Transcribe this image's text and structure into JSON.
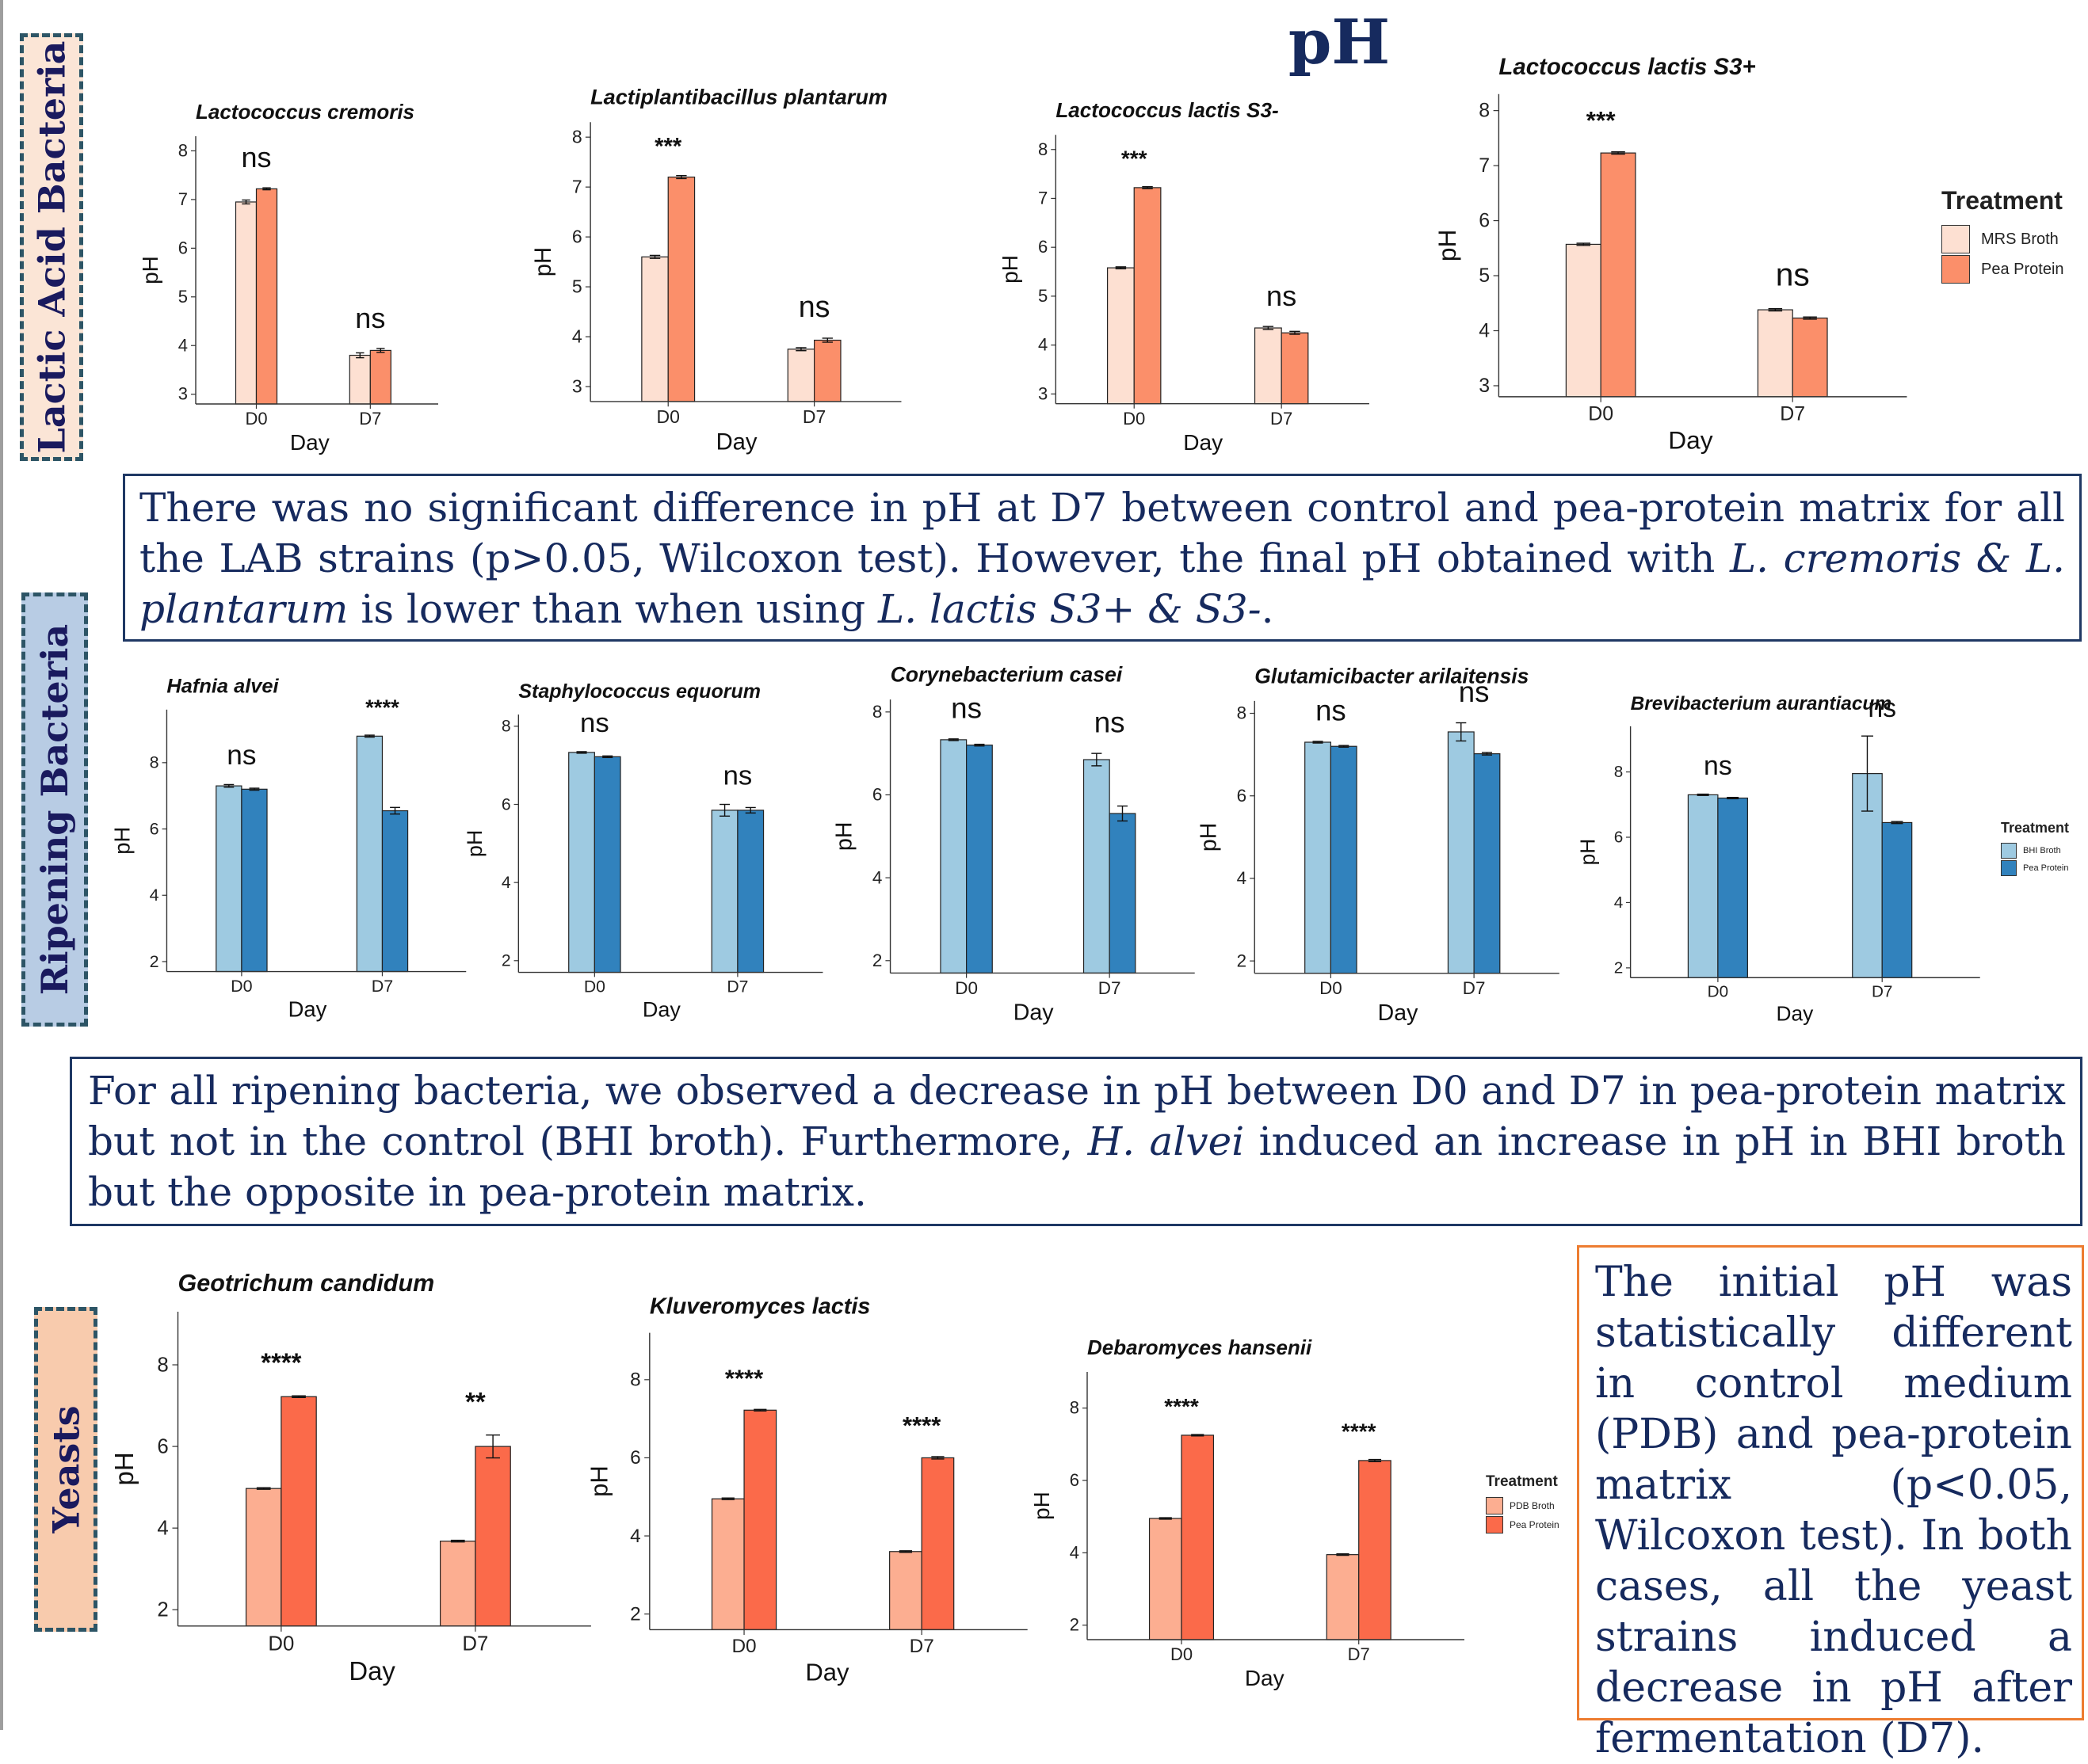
{
  "title": "pH",
  "sections": {
    "lab": "Lactic Acid Bacteria",
    "ripening": "Ripening Bacteria",
    "yeasts": "Yeasts"
  },
  "texts": {
    "lab": [
      "There was no significant difference in pH at D7 between control and pea-protein matrix for all the LAB strains (p>0.05, Wilcoxon test). However, the final pH obtained with ",
      "L. cremoris & L. plantarum",
      " is lower than when using ",
      "L. lactis S3+ & S3-",
      "."
    ],
    "ripening": [
      "For all ripening bacteria, we observed a decrease in pH between D0 and D7 in pea-protein matrix but not in the control (BHI broth). Furthermore, ",
      "H. alvei",
      " induced an increase in pH in BHI broth but the opposite in pea-protein matrix."
    ],
    "yeasts": "The initial pH was statistically different in control medium (PDB) and pea-protein matrix (p<0.05, Wilcoxon test). In both cases, all the yeast strains induced a decrease in pH after fermentation (D7)."
  },
  "legends": {
    "lab": {
      "title": "Treatment",
      "items": [
        "MRS Broth",
        "Pea Protein"
      ],
      "colors": [
        "#fde0d2",
        "#fb8f6a"
      ]
    },
    "ripening": {
      "title": "Treatment",
      "items": [
        "BHI Broth",
        "Pea Protein"
      ],
      "colors": [
        "#9ecae1",
        "#3182bd"
      ]
    },
    "yeasts": {
      "title": "Treatment",
      "items": [
        "PDB Broth",
        "Pea Protein"
      ],
      "colors": [
        "#fcae91",
        "#fb6a4a"
      ]
    }
  },
  "chart_data": [
    {
      "type": "bar",
      "title": "Lactococcus cremoris",
      "xlabel": "Day",
      "ylabel": "pH",
      "categories": [
        "D0",
        "D7"
      ],
      "series": [
        {
          "name": "MRS Broth",
          "values": [
            6.95,
            3.8
          ],
          "err": [
            0.04,
            0.05
          ]
        },
        {
          "name": "Pea Protein",
          "values": [
            7.22,
            3.9
          ],
          "err": [
            0.02,
            0.04
          ]
        }
      ],
      "ylim": [
        2.8,
        8.3
      ],
      "yticks": [
        3,
        4,
        5,
        6,
        7,
        8
      ],
      "sig": [
        "ns",
        "ns"
      ],
      "colors": [
        "#fde0d2",
        "#fb8f6a"
      ]
    },
    {
      "type": "bar",
      "title": "Lactiplantibacillus plantarum",
      "xlabel": "Day",
      "ylabel": "pH",
      "categories": [
        "D0",
        "D7"
      ],
      "series": [
        {
          "name": "MRS Broth",
          "values": [
            5.6,
            3.75
          ],
          "err": [
            0.03,
            0.03
          ]
        },
        {
          "name": "Pea Protein",
          "values": [
            7.2,
            3.93
          ],
          "err": [
            0.03,
            0.04
          ]
        }
      ],
      "ylim": [
        2.7,
        8.3
      ],
      "yticks": [
        3,
        4,
        5,
        6,
        7,
        8
      ],
      "sig": [
        "***",
        "ns"
      ],
      "colors": [
        "#fde0d2",
        "#fb8f6a"
      ]
    },
    {
      "type": "bar",
      "title": "Lactococcus lactis S3-",
      "xlabel": "Day",
      "ylabel": "pH",
      "categories": [
        "D0",
        "D7"
      ],
      "series": [
        {
          "name": "MRS Broth",
          "values": [
            5.58,
            4.35
          ],
          "err": [
            0.02,
            0.03
          ]
        },
        {
          "name": "Pea Protein",
          "values": [
            7.22,
            4.25
          ],
          "err": [
            0.02,
            0.03
          ]
        }
      ],
      "ylim": [
        2.8,
        8.3
      ],
      "yticks": [
        3,
        4,
        5,
        6,
        7,
        8
      ],
      "sig": [
        "***",
        "ns"
      ],
      "colors": [
        "#fde0d2",
        "#fb8f6a"
      ]
    },
    {
      "type": "bar",
      "title": "Lactococcus lactis S3+",
      "xlabel": "Day",
      "ylabel": "pH",
      "categories": [
        "D0",
        "D7"
      ],
      "series": [
        {
          "name": "MRS Broth",
          "values": [
            5.57,
            4.38
          ],
          "err": [
            0.02,
            0.02
          ]
        },
        {
          "name": "Pea Protein",
          "values": [
            7.23,
            4.23
          ],
          "err": [
            0.02,
            0.02
          ]
        }
      ],
      "ylim": [
        2.8,
        8.3
      ],
      "yticks": [
        3,
        4,
        5,
        6,
        7,
        8
      ],
      "sig": [
        "***",
        "ns"
      ],
      "colors": [
        "#fde0d2",
        "#fb8f6a"
      ]
    },
    {
      "type": "bar",
      "title": "Hafnia alvei",
      "xlabel": "Day",
      "ylabel": "pH",
      "categories": [
        "D0",
        "D7"
      ],
      "series": [
        {
          "name": "BHI Broth",
          "values": [
            7.3,
            8.8
          ],
          "err": [
            0.04,
            0.03
          ]
        },
        {
          "name": "Pea Protein",
          "values": [
            7.2,
            6.55
          ],
          "err": [
            0.03,
            0.1
          ]
        }
      ],
      "ylim": [
        1.7,
        9.6
      ],
      "yticks": [
        2,
        4,
        6,
        8
      ],
      "sig": [
        "ns",
        "****"
      ],
      "colors": [
        "#9ecae1",
        "#3182bd"
      ]
    },
    {
      "type": "bar",
      "title": "Staphylococcus equorum",
      "xlabel": "Day",
      "ylabel": "pH",
      "categories": [
        "D0",
        "D7"
      ],
      "series": [
        {
          "name": "BHI Broth",
          "values": [
            7.33,
            5.85
          ],
          "err": [
            0.02,
            0.15
          ]
        },
        {
          "name": "Pea Protein",
          "values": [
            7.22,
            5.85
          ],
          "err": [
            0.02,
            0.07
          ]
        }
      ],
      "ylim": [
        1.7,
        8.3
      ],
      "yticks": [
        2,
        4,
        6,
        8
      ],
      "sig": [
        "ns",
        "ns"
      ],
      "colors": [
        "#9ecae1",
        "#3182bd"
      ]
    },
    {
      "type": "bar",
      "title": "Corynebacterium casei",
      "xlabel": "Day",
      "ylabel": "pH",
      "categories": [
        "D0",
        "D7"
      ],
      "series": [
        {
          "name": "BHI Broth",
          "values": [
            7.33,
            6.85
          ],
          "err": [
            0.02,
            0.15
          ]
        },
        {
          "name": "Pea Protein",
          "values": [
            7.2,
            5.55
          ],
          "err": [
            0.02,
            0.18
          ]
        }
      ],
      "ylim": [
        1.7,
        8.3
      ],
      "yticks": [
        2,
        4,
        6,
        8
      ],
      "sig": [
        "ns",
        "ns"
      ],
      "colors": [
        "#9ecae1",
        "#3182bd"
      ]
    },
    {
      "type": "bar",
      "title": "Glutamicibacter arilaitensis",
      "xlabel": "Day",
      "ylabel": "pH",
      "categories": [
        "D0",
        "D7"
      ],
      "series": [
        {
          "name": "BHI Broth",
          "values": [
            7.3,
            7.55
          ],
          "err": [
            0.02,
            0.22
          ]
        },
        {
          "name": "Pea Protein",
          "values": [
            7.2,
            7.02
          ],
          "err": [
            0.02,
            0.03
          ]
        }
      ],
      "ylim": [
        1.7,
        8.3
      ],
      "yticks": [
        2,
        4,
        6,
        8
      ],
      "sig": [
        "ns",
        "ns"
      ],
      "colors": [
        "#9ecae1",
        "#3182bd"
      ]
    },
    {
      "type": "bar",
      "title": "Brevibacterium aurantiacum",
      "xlabel": "Day",
      "ylabel": "pH",
      "categories": [
        "D0",
        "D7"
      ],
      "series": [
        {
          "name": "BHI Broth",
          "values": [
            7.3,
            7.95
          ],
          "err": [
            0.02,
            1.15
          ]
        },
        {
          "name": "Pea Protein",
          "values": [
            7.2,
            6.45
          ],
          "err": [
            0.02,
            0.03
          ]
        }
      ],
      "ylim": [
        1.7,
        9.4
      ],
      "yticks": [
        2,
        4,
        6,
        8
      ],
      "sig": [
        "ns",
        "ns"
      ],
      "colors": [
        "#9ecae1",
        "#3182bd"
      ]
    },
    {
      "type": "bar",
      "title": "Geotrichum candidum",
      "xlabel": "Day",
      "ylabel": "pH",
      "categories": [
        "D0",
        "D7"
      ],
      "series": [
        {
          "name": "PDB Broth",
          "values": [
            4.97,
            3.68
          ],
          "err": [
            0.02,
            0.02
          ]
        },
        {
          "name": "Pea Protein",
          "values": [
            7.22,
            6.0
          ],
          "err": [
            0.02,
            0.28
          ]
        }
      ],
      "ylim": [
        1.6,
        9.3
      ],
      "yticks": [
        2,
        4,
        6,
        8
      ],
      "sig": [
        "****",
        "**"
      ],
      "colors": [
        "#fcae91",
        "#fb6a4a"
      ]
    },
    {
      "type": "bar",
      "title": "Kluveromyces lactis",
      "xlabel": "Day",
      "ylabel": "pH",
      "categories": [
        "D0",
        "D7"
      ],
      "series": [
        {
          "name": "PDB Broth",
          "values": [
            4.95,
            3.6
          ],
          "err": [
            0.02,
            0.02
          ]
        },
        {
          "name": "Pea Protein",
          "values": [
            7.22,
            6.0
          ],
          "err": [
            0.02,
            0.03
          ]
        }
      ],
      "ylim": [
        1.6,
        9.2
      ],
      "yticks": [
        2,
        4,
        6,
        8
      ],
      "sig": [
        "****",
        "****"
      ],
      "colors": [
        "#fcae91",
        "#fb6a4a"
      ]
    },
    {
      "type": "bar",
      "title": "Debaromyces hansenii",
      "xlabel": "Day",
      "ylabel": "pH",
      "categories": [
        "D0",
        "D7"
      ],
      "series": [
        {
          "name": "PDB Broth",
          "values": [
            4.95,
            3.95
          ],
          "err": [
            0.02,
            0.02
          ]
        },
        {
          "name": "Pea Protein",
          "values": [
            7.25,
            6.55
          ],
          "err": [
            0.02,
            0.03
          ]
        }
      ],
      "ylim": [
        1.6,
        9.0
      ],
      "yticks": [
        2,
        4,
        6,
        8
      ],
      "sig": [
        "****",
        "****"
      ],
      "colors": [
        "#fcae91",
        "#fb6a4a"
      ]
    }
  ]
}
